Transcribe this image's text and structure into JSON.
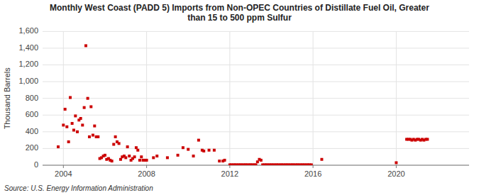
{
  "chart_data": {
    "type": "scatter",
    "title": "Monthly West Coast (PADD 5) Imports from Non-OPEC Countries of Distillate Fuel Oil, Greater\nthan 15 to 500 ppm Sulfur",
    "ylabel": "Thousand Barrels",
    "annotations": [
      "Source: U.S. Energy Information Administration"
    ],
    "color": "#cc0000",
    "marker": "square",
    "grid": true,
    "xlim": [
      2003.0,
      2023.5
    ],
    "ylim": [
      0,
      1600
    ],
    "xticks": [
      2004,
      2008,
      2012,
      2016,
      2020
    ],
    "yticks": [
      0,
      200,
      400,
      600,
      800,
      {
        "value": 1000,
        "label": "1,000"
      },
      {
        "value": 1200,
        "label": "1,200"
      },
      {
        "value": 1400,
        "label": "1,400"
      },
      {
        "value": 1600,
        "label": "1,600"
      }
    ],
    "x": [
      2003.75,
      2004.0,
      2004.08,
      2004.17,
      2004.25,
      2004.33,
      2004.42,
      2004.5,
      2004.58,
      2004.67,
      2004.75,
      2004.83,
      2004.92,
      2005.0,
      2005.08,
      2005.17,
      2005.25,
      2005.33,
      2005.42,
      2005.5,
      2005.58,
      2005.67,
      2005.75,
      2005.83,
      2005.92,
      2006.0,
      2006.08,
      2006.17,
      2006.25,
      2006.33,
      2006.42,
      2006.5,
      2006.58,
      2006.67,
      2006.75,
      2006.83,
      2006.92,
      2007.0,
      2007.08,
      2007.17,
      2007.25,
      2007.33,
      2007.42,
      2007.5,
      2007.58,
      2007.67,
      2007.75,
      2007.83,
      2007.92,
      2008.0,
      2008.33,
      2008.5,
      2009.0,
      2009.5,
      2009.75,
      2010.0,
      2010.25,
      2010.5,
      2010.67,
      2010.75,
      2011.0,
      2011.25,
      2011.5,
      2011.67,
      2011.75,
      2012.0,
      2012.08,
      2012.17,
      2012.25,
      2012.33,
      2012.42,
      2012.5,
      2012.58,
      2012.67,
      2012.75,
      2012.83,
      2012.92,
      2013.0,
      2013.08,
      2013.17,
      2013.25,
      2013.33,
      2013.42,
      2013.5,
      2013.58,
      2013.67,
      2013.75,
      2013.83,
      2013.92,
      2014.0,
      2014.08,
      2014.17,
      2014.25,
      2014.33,
      2014.42,
      2014.5,
      2014.58,
      2014.67,
      2014.75,
      2014.83,
      2014.92,
      2015.0,
      2015.08,
      2015.17,
      2015.25,
      2015.33,
      2015.42,
      2015.5,
      2015.58,
      2015.67,
      2015.75,
      2015.83,
      2015.92,
      2016.42,
      2020.0,
      2020.5,
      2020.58,
      2020.67,
      2020.75,
      2020.83,
      2020.92,
      2021.0,
      2021.08,
      2021.17,
      2021.25,
      2021.33,
      2021.42,
      2021.5
    ],
    "values": [
      220,
      480,
      670,
      460,
      280,
      810,
      500,
      420,
      590,
      400,
      540,
      560,
      480,
      690,
      1430,
      800,
      340,
      700,
      360,
      470,
      340,
      340,
      80,
      90,
      110,
      120,
      70,
      80,
      60,
      50,
      250,
      340,
      280,
      260,
      70,
      100,
      110,
      90,
      220,
      110,
      60,
      80,
      100,
      210,
      180,
      60,
      100,
      60,
      60,
      60,
      90,
      110,
      90,
      120,
      210,
      190,
      110,
      300,
      180,
      170,
      180,
      180,
      50,
      50,
      60,
      5,
      5,
      5,
      5,
      5,
      5,
      5,
      5,
      5,
      5,
      5,
      5,
      5,
      5,
      5,
      5,
      40,
      70,
      60,
      5,
      5,
      5,
      5,
      5,
      5,
      5,
      5,
      5,
      5,
      5,
      5,
      5,
      5,
      5,
      5,
      5,
      5,
      5,
      5,
      5,
      5,
      5,
      5,
      5,
      5,
      5,
      5,
      5,
      70,
      30,
      310,
      310,
      310,
      300,
      310,
      300,
      310,
      310,
      300,
      310,
      300,
      310,
      310
    ]
  }
}
